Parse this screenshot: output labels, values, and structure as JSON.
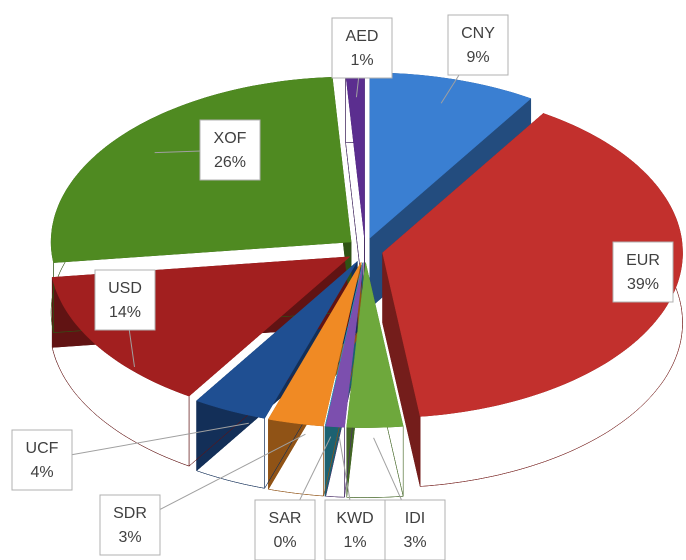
{
  "chart_data": {
    "type": "pie",
    "categories": [
      "CNY",
      "EUR",
      "IDI",
      "KWD",
      "SAR",
      "SDR",
      "UCF",
      "USD",
      "XOF",
      "AED"
    ],
    "values": [
      9,
      39,
      3,
      1,
      0,
      3,
      4,
      14,
      26,
      1
    ],
    "value_labels": [
      "9%",
      "39%",
      "3%",
      "1%",
      "0%",
      "3%",
      "4%",
      "14%",
      "26%",
      "1%"
    ],
    "colors": [
      "#3a7fd2",
      "#c2302d",
      "#6ea83c",
      "#7c4fae",
      "#2ea2bd",
      "#f08a24",
      "#1f4f92",
      "#a21f1f",
      "#4f8a21",
      "#5b2e8f"
    ]
  }
}
